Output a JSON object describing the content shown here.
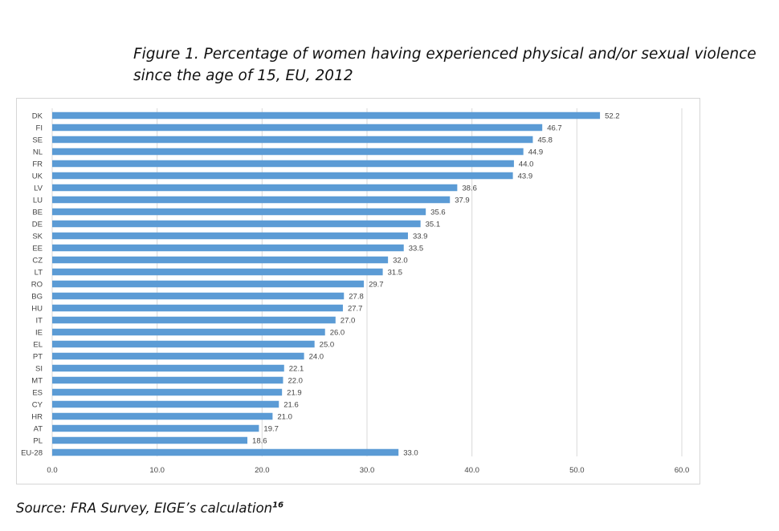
{
  "caption": {
    "line1": "Figure 1. Percentage of women having experienced physical and/or sexual violence",
    "line2": "since the age of 15, EU, 2012"
  },
  "source": {
    "text": "Source: FRA Survey, EIGE’s calculation",
    "footnote": "16"
  },
  "chart_data": {
    "type": "bar",
    "orientation": "horizontal",
    "categories": [
      "DK",
      "FI",
      "SE",
      "NL",
      "FR",
      "UK",
      "LV",
      "LU",
      "BE",
      "DE",
      "SK",
      "EE",
      "CZ",
      "LT",
      "RO",
      "BG",
      "HU",
      "IT",
      "IE",
      "EL",
      "PT",
      "SI",
      "MT",
      "ES",
      "CY",
      "HR",
      "AT",
      "PL",
      "EU-28"
    ],
    "values": [
      52.2,
      46.7,
      45.8,
      44.9,
      44.0,
      43.9,
      38.6,
      37.9,
      35.6,
      35.1,
      33.9,
      33.5,
      32.0,
      31.5,
      29.7,
      27.8,
      27.7,
      27.0,
      26.0,
      25.0,
      24.0,
      22.1,
      22.0,
      21.9,
      21.6,
      21.0,
      19.7,
      18.6,
      33.0
    ],
    "value_labels": [
      "52.2",
      "46.7",
      "45.8",
      "44.9",
      "44.0",
      "43.9",
      "38.6",
      "37.9",
      "35.6",
      "35.1",
      "33.9",
      "33.5",
      "32.0",
      "31.5",
      "29.7",
      "27.8",
      "27.7",
      "27.0",
      "26.0",
      "25.0",
      "24.0",
      "22.1",
      "22.0",
      "21.9",
      "21.6",
      "21.0",
      "19.7",
      "18.6",
      "33.0"
    ],
    "xlim": [
      0,
      60
    ],
    "x_ticks": [
      0,
      10,
      20,
      30,
      40,
      50,
      60
    ],
    "x_tick_labels": [
      "0.0",
      "10.0",
      "20.0",
      "30.0",
      "40.0",
      "50.0",
      "60.0"
    ],
    "grid": "vertical",
    "legend": "none",
    "bar_color": "#5b9bd5",
    "grid_color": "#d9d9d9"
  }
}
